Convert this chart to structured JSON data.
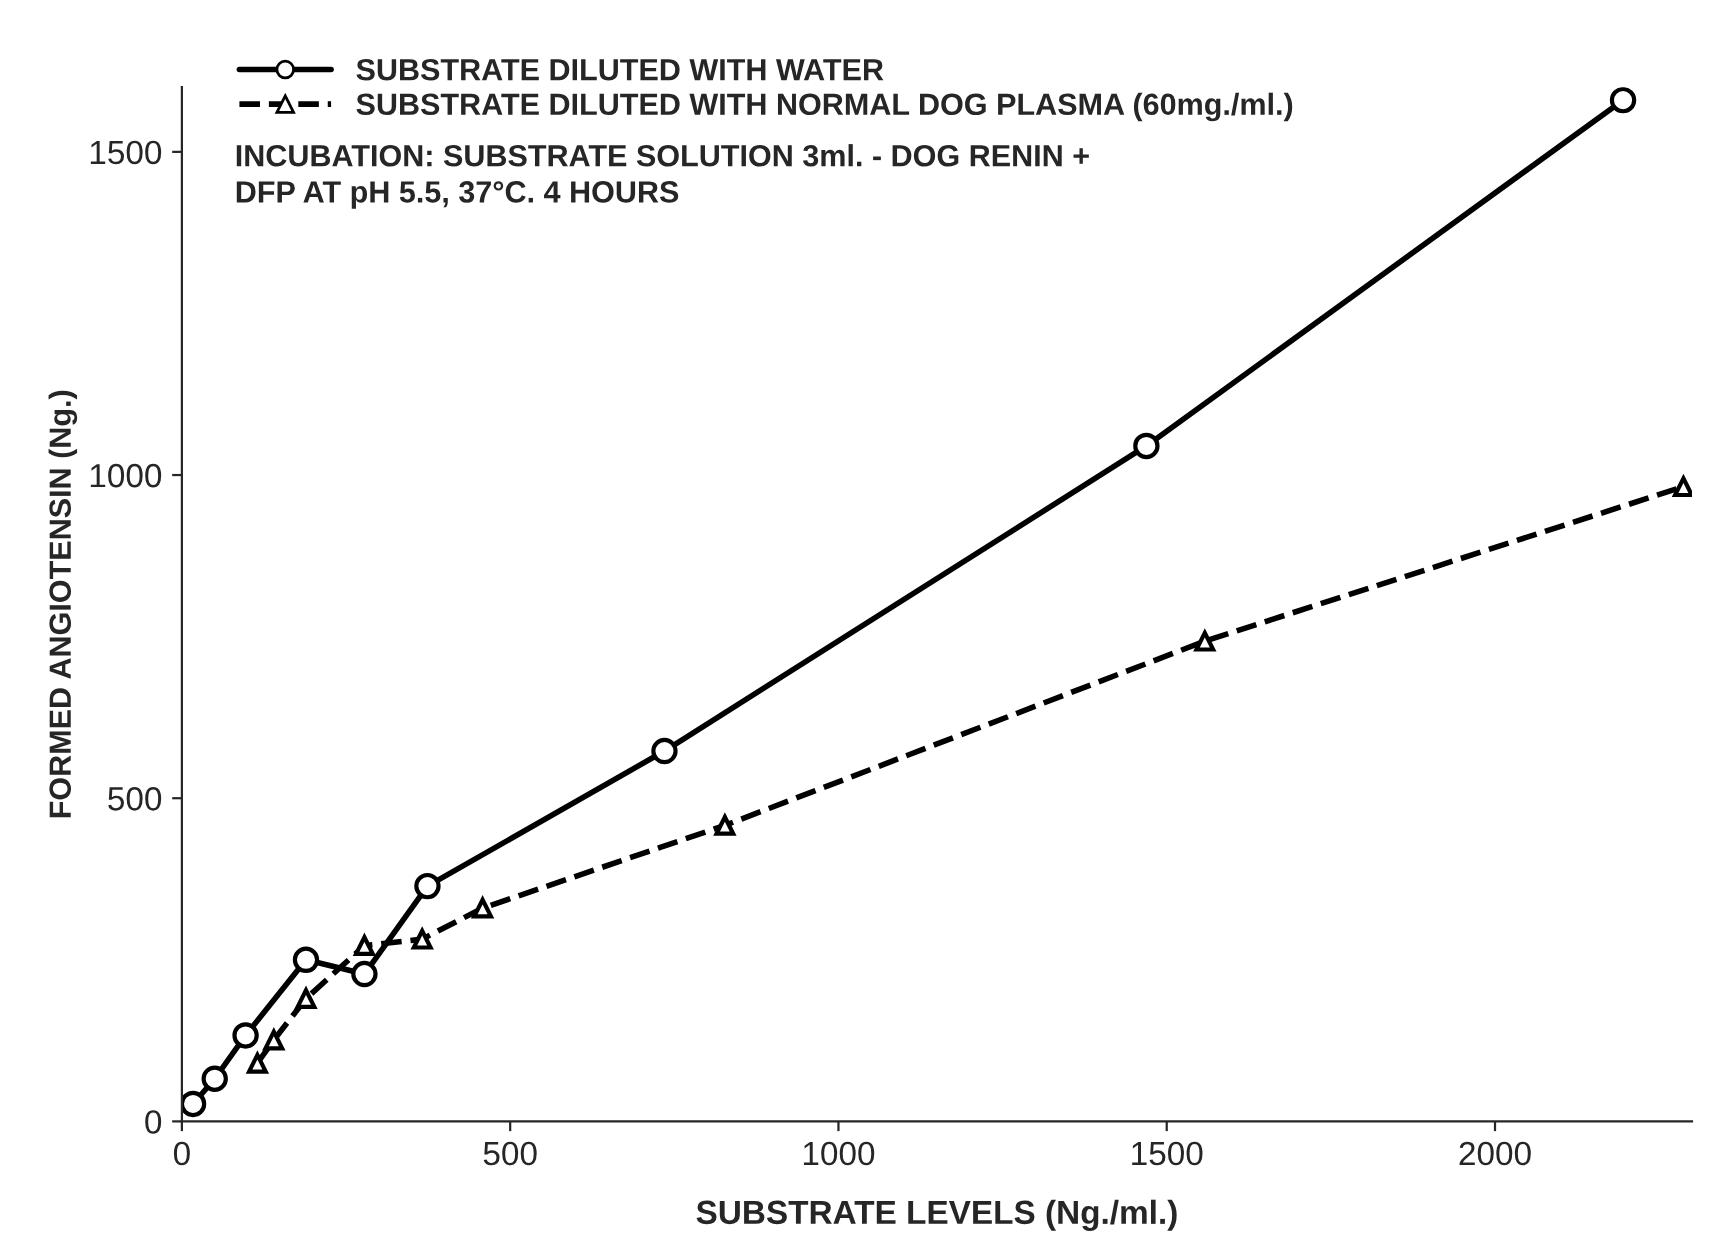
{
  "chart_data": {
    "type": "line",
    "xlabel": "SUBSTRATE LEVELS (Ng./ml.)",
    "ylabel": "FORMED ANGIOTENSIN (Ng.)",
    "xlim": [
      0,
      2300
    ],
    "ylim": [
      0,
      1600
    ],
    "xticks": [
      0,
      500,
      1000,
      1500,
      2000
    ],
    "yticks": [
      0,
      500,
      1000,
      1500
    ],
    "grid": false,
    "legend": "top left",
    "annotations": [
      "INCUBATION: SUBSTRATE SOLUTION 3ml. - DOG RENIN +",
      "DFP AT pH 5.5, 37°C. 4 HOURS"
    ],
    "series": [
      {
        "name": "SUBSTRATE DILUTED WITH WATER",
        "color": "#000000",
        "marker": "circle",
        "line_style": "solid",
        "x": [
          17,
          50,
          97,
          189,
          278,
          374,
          735,
          1469,
          2195
        ],
        "values": [
          27,
          66,
          133,
          250,
          228,
          364,
          573,
          1045,
          1580
        ]
      },
      {
        "name": "SUBSTRATE DILUTED WITH NORMAL DOG PLASMA (60mg./ml.)",
        "color": "#000000",
        "marker": "triangle",
        "line_style": "dashed",
        "x": [
          115,
          140,
          189,
          278,
          366,
          458,
          827,
          1558,
          2287
        ],
        "values": [
          90,
          126,
          190,
          272,
          282,
          330,
          458,
          743,
          982
        ]
      }
    ]
  }
}
